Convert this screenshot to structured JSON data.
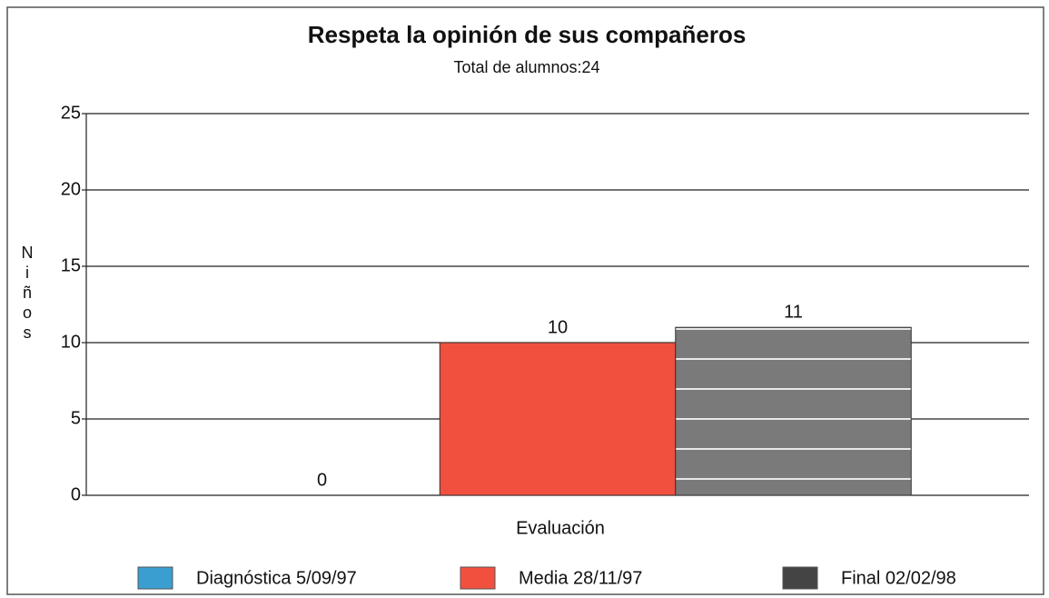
{
  "chart_data": {
    "type": "bar",
    "title": "Respeta la opinión de sus compañeros",
    "subtitle": "Total de alumnos:24",
    "x_label": "Evaluación",
    "y_label": "Niños",
    "categories": [
      null
    ],
    "series": [
      {
        "name": "Diagnóstica 5/09/97",
        "color": "#3a9fd0",
        "values": [
          0
        ]
      },
      {
        "name": "Media 28/11/97",
        "color": "#f2503f",
        "values": [
          10
        ]
      },
      {
        "name": "Final 02/02/98",
        "color": "#808080",
        "hatch": "horizontal",
        "values": [
          11
        ]
      }
    ],
    "ylim": [
      0,
      25
    ],
    "yticks": [
      0,
      5,
      10,
      15,
      20,
      25
    ],
    "grid": true
  }
}
